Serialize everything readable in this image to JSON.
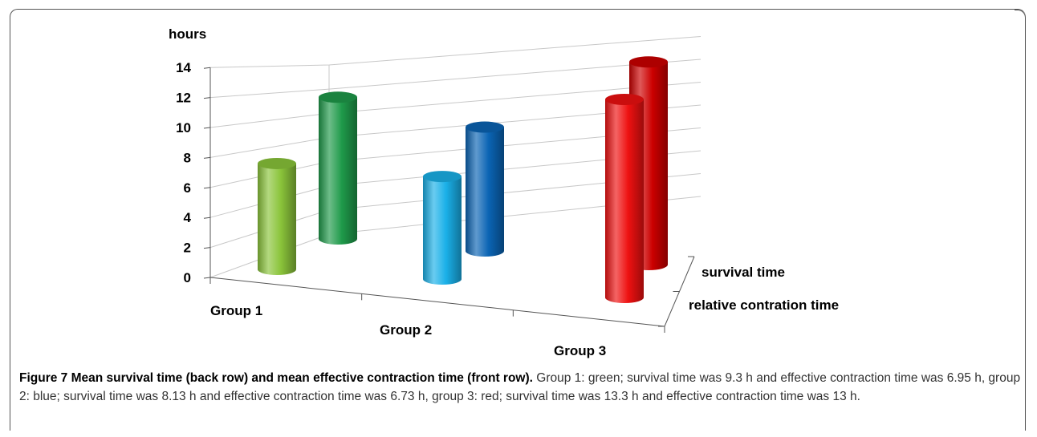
{
  "chart_data": {
    "type": "bar",
    "style": "3d-cylinder",
    "ylabel": "hours",
    "ylim": [
      0,
      14
    ],
    "yticks": [
      0,
      2,
      4,
      6,
      8,
      10,
      12,
      14
    ],
    "categories": [
      "Group 1",
      "Group 2",
      "Group 3"
    ],
    "series": [
      {
        "name": "survival time",
        "row": "back",
        "values": [
          9.3,
          8.13,
          13.3
        ]
      },
      {
        "name": "relative contration time",
        "row": "front",
        "values": [
          6.95,
          6.73,
          13.0
        ]
      }
    ],
    "colors": {
      "Group 1": {
        "front": "#8ac43a",
        "back": "#1f9a4a"
      },
      "Group 2": {
        "front": "#1ab0e8",
        "back": "#0a64b4"
      },
      "Group 3": {
        "front": "#ee1111",
        "back": "#cc0000"
      }
    },
    "grid": true
  },
  "caption": {
    "label": "Figure 7 Mean survival time (back row) and mean effective contraction time (front row).",
    "text": "Group 1: green; survival time was 9.3 h and effective contraction time was 6.95 h, group 2: blue; survival time was 8.13 h and effective contraction time was 6.73 h, group 3: red; survival time was 13.3 h and effective contraction time was 13 h."
  }
}
